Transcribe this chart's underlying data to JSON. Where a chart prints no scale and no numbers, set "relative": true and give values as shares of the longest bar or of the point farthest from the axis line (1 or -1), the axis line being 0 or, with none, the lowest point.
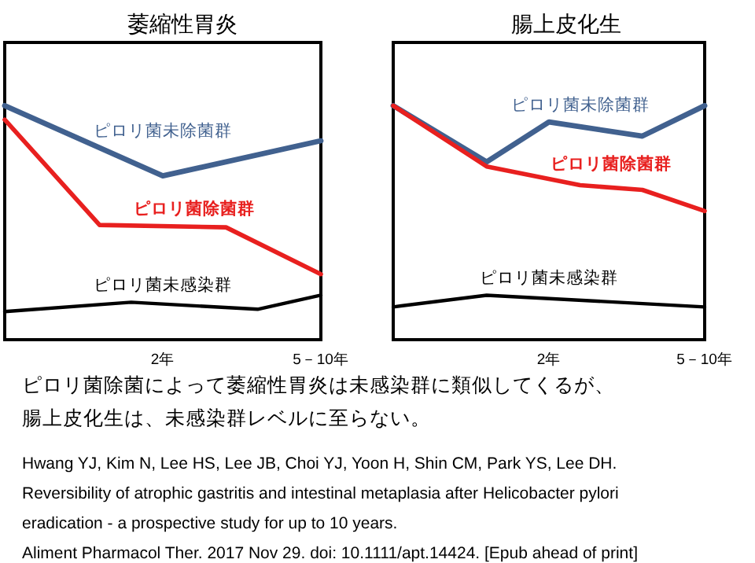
{
  "chart_data": [
    {
      "type": "line",
      "title": "萎縮性胃炎",
      "relative": true,
      "marker": "none",
      "categories": [
        null,
        null,
        null,
        null,
        null,
        "2年",
        null,
        null,
        null,
        null,
        "5－10年"
      ],
      "series": [
        {
          "name": "ピロリ菌未除菌群",
          "color": "#41618f",
          "values": [
            1.0,
            null,
            null,
            null,
            null,
            0.7,
            null,
            null,
            null,
            null,
            0.85
          ]
        },
        {
          "name": "ピロリ菌除菌群",
          "color": "#e8201f",
          "values": [
            0.94,
            null,
            null,
            0.49,
            null,
            null,
            null,
            0.48,
            null,
            null,
            0.28
          ]
        },
        {
          "name": "ピロリ菌未感染群",
          "color": "#000000",
          "values": [
            0.12,
            null,
            null,
            null,
            0.16,
            null,
            null,
            null,
            0.13,
            null,
            0.19
          ]
        }
      ],
      "annotations": [
        "ピロリ菌除菌によって萎縮性胃炎は未感染群に類似してくるが、",
        "腸上皮化生は、未感染群レベルに至らない。",
        "Hwang YJ, Kim N, Lee HS, Lee JB, Choi YJ, Yoon H, Shin CM, Park YS, Lee DH.",
        "Reversibility of atrophic gastritis and intestinal metaplasia after Helicobacter pylori",
        "eradication - a prospective study for up to 10 years.",
        "Aliment Pharmacol Ther. 2017 Nov 29. doi: 10.1111/apt.14424. [Epub ahead of print]"
      ]
    },
    {
      "type": "line",
      "title": "腸上皮化生",
      "relative": true,
      "marker": "none",
      "categories": [
        null,
        null,
        null,
        null,
        null,
        "2年",
        null,
        null,
        null,
        null,
        "5－10年"
      ],
      "series": [
        {
          "name": "ピロリ菌未除菌群",
          "color": "#41618f",
          "values": [
            1.0,
            null,
            null,
            0.76,
            null,
            0.93,
            null,
            null,
            0.87,
            null,
            1.0
          ]
        },
        {
          "name": "ピロリ菌除菌群",
          "color": "#e8201f",
          "values": [
            1.0,
            null,
            null,
            0.74,
            null,
            null,
            0.66,
            null,
            0.64,
            null,
            0.55
          ]
        },
        {
          "name": "ピロリ菌未感染群",
          "color": "#000000",
          "values": [
            0.14,
            null,
            null,
            0.19,
            null,
            null,
            null,
            null,
            null,
            null,
            0.14
          ]
        }
      ]
    }
  ]
}
